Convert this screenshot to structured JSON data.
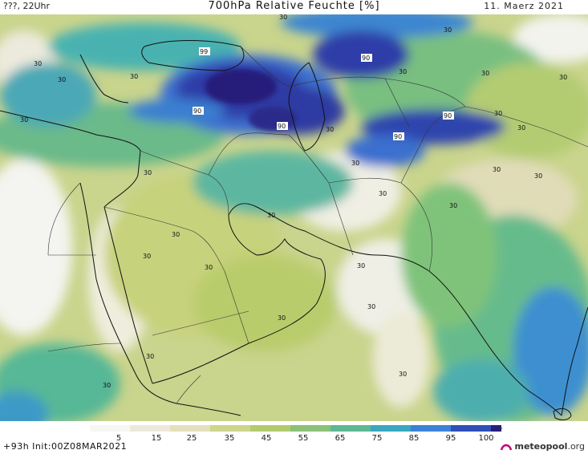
{
  "header": {
    "left": "???, 22Uhr",
    "title": "700hPa Relative Feuchte [%]",
    "right": "11. Maerz 2021"
  },
  "colorbar": {
    "labels": [
      "5",
      "15",
      "25",
      "35",
      "45",
      "55",
      "65",
      "75",
      "85",
      "95",
      "100"
    ],
    "colors": [
      "#f6f6f4",
      "#ece9dc",
      "#e4dfbd",
      "#ccd58c",
      "#b2cb6c",
      "#8cc078",
      "#5cb894",
      "#3aa7c0",
      "#3c82d6",
      "#2f4fb9",
      "#281f7a"
    ]
  },
  "contour_labels": [
    {
      "t": "99"
    },
    {
      "t": "90"
    },
    {
      "t": "90"
    },
    {
      "t": "90"
    },
    {
      "t": "90"
    },
    {
      "t": "90"
    },
    {
      "t": "30"
    },
    {
      "t": "30"
    },
    {
      "t": "30"
    },
    {
      "t": "30"
    },
    {
      "t": "30"
    },
    {
      "t": "30"
    },
    {
      "t": "30"
    },
    {
      "t": "30"
    },
    {
      "t": "30"
    },
    {
      "t": "30"
    },
    {
      "t": "30"
    },
    {
      "t": "30"
    },
    {
      "t": "30"
    },
    {
      "t": "30"
    },
    {
      "t": "30"
    },
    {
      "t": "30"
    },
    {
      "t": "30"
    },
    {
      "t": "30"
    },
    {
      "t": "30"
    },
    {
      "t": "30"
    },
    {
      "t": "30"
    },
    {
      "t": "30"
    },
    {
      "t": "30"
    },
    {
      "t": "30"
    },
    {
      "t": "30"
    },
    {
      "t": "30"
    },
    {
      "t": "30"
    },
    {
      "t": "30"
    }
  ],
  "footer": {
    "init": "+93h Init:00Z08MAR2021",
    "logo": "meteopool",
    "logo_suffix": ".org"
  }
}
